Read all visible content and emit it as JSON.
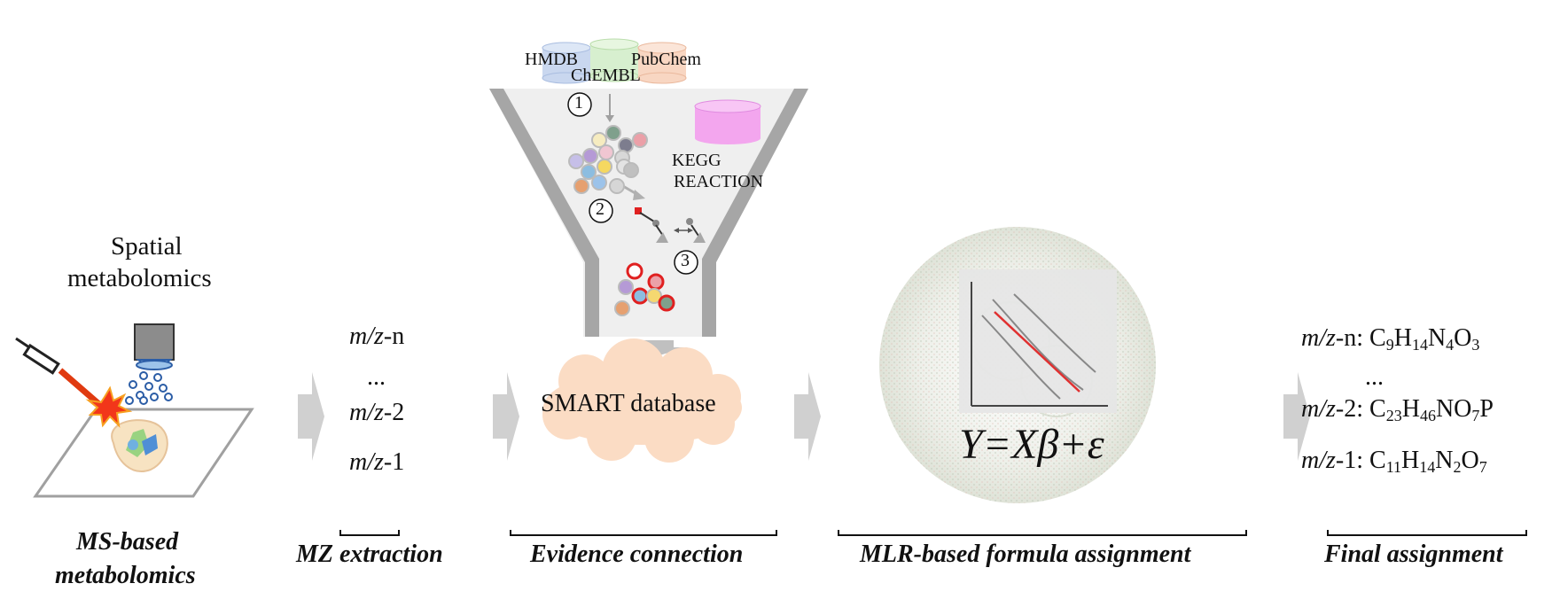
{
  "stage1": {
    "heading_line1": "Spatial",
    "heading_line2": "metabolomics",
    "title_line1": "MS-based",
    "title_line2": "metabolomics"
  },
  "stage2": {
    "title": "MZ extraction",
    "mz_prefix": "m/z",
    "items": [
      "-n",
      "...",
      "-2",
      "-1"
    ]
  },
  "stage3": {
    "title": "Evidence connection",
    "databases": [
      "HMDB",
      "ChEMBL",
      "PubChem"
    ],
    "kegg_line1": "KEGG",
    "kegg_line2": "REACTION",
    "steps": [
      "1",
      "2",
      "3"
    ],
    "output": "SMART database"
  },
  "stage4": {
    "title": "MLR-based formula assignment",
    "equation": "Y=Xβ+ε"
  },
  "stage5": {
    "title": "Final assignment",
    "rows": [
      {
        "label": "-n:",
        "formula": [
          [
            "C",
            "9"
          ],
          [
            "H",
            "14"
          ],
          [
            "N",
            "4"
          ],
          [
            "O",
            "3"
          ]
        ]
      },
      {
        "label": "...",
        "formula": []
      },
      {
        "label": "-2:",
        "formula": [
          [
            "C",
            "23"
          ],
          [
            "H",
            "46"
          ],
          [
            "NO",
            "7"
          ],
          [
            "P",
            ""
          ]
        ]
      },
      {
        "label": "-1:",
        "formula": [
          [
            "C",
            "11"
          ],
          [
            "H",
            "14"
          ],
          [
            "N",
            "2"
          ],
          [
            "O",
            "7"
          ]
        ]
      }
    ]
  },
  "colors": {
    "arrow": "#d0d0d0",
    "funnel": "#a6a6a6",
    "funnel_fill": "#efefef",
    "cloud": "#fbdcc4",
    "hmdb": "#c9d7ef",
    "chembl": "#d7efcf",
    "pubchem": "#f8d6c2",
    "kegg": "#f3a6ee",
    "laser": "#e03a10",
    "regression": "#e03030"
  },
  "icons": [
    "syringe-icon",
    "laser-beam-icon",
    "microscope-objective-icon",
    "tissue-slide-icon",
    "process-arrow-icon",
    "database-cylinder-icon",
    "molecule-cluster-icon",
    "reaction-icon",
    "cloud-icon",
    "regression-plot-icon"
  ]
}
